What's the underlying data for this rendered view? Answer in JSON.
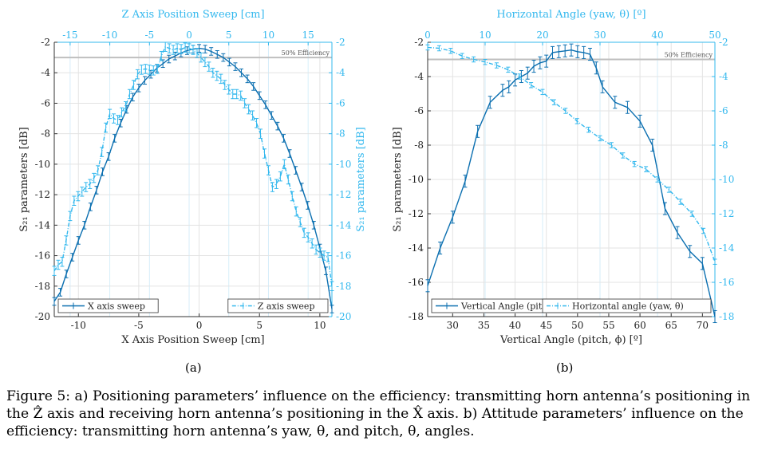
{
  "figure": {
    "label_a": "(a)",
    "label_b": "(b)",
    "caption": "Figure 5: a) Positioning parameters’ influence on the efficiency: transmitting horn antenna’s positioning in the Ẑ axis and receiving horn antenna’s positioning in the X̂ axis. b) Attitude parameters’ influence on the efficiency: transmitting horn antenna’s yaw, θ, and pitch, θ, angles."
  },
  "colors": {
    "dark": "#0b6fb0",
    "light": "#33b8ee",
    "efficiency_line": "#bfbfbf",
    "grid": "#e3e3e3"
  },
  "chart_data": [
    {
      "type": "line",
      "title": "",
      "bottom_xlabel": "X Axis Position Sweep [cm]",
      "top_xlabel": "Z Axis Position Sweep [cm]",
      "left_ylabel": "S₂₁ parameters [dB]",
      "right_ylabel": "S₂₁ parameters [dB]",
      "bottom_xlim": [
        -12,
        11
      ],
      "bottom_xticks": [
        -10,
        -5,
        0,
        5,
        10
      ],
      "top_xlim": [
        -17,
        18
      ],
      "top_xticks": [
        -15,
        -10,
        -5,
        0,
        5,
        10,
        15
      ],
      "ylim": [
        -20,
        -2
      ],
      "yticks": [
        -2,
        -4,
        -6,
        -8,
        -10,
        -12,
        -14,
        -16,
        -18,
        -20
      ],
      "grid": true,
      "reference_line": {
        "y": -3,
        "label": "50% Efficiency"
      },
      "legend": [
        "bottom-left",
        "bottom-right"
      ],
      "series": [
        {
          "name": "X axis sweep",
          "axis": "bottom-left",
          "style": "solid",
          "x": [
            -12,
            -11.5,
            -11,
            -10.5,
            -10,
            -9.5,
            -9,
            -8.5,
            -8,
            -7.5,
            -7,
            -6.5,
            -6,
            -5.5,
            -5,
            -4.5,
            -4,
            -3.5,
            -3,
            -2.5,
            -2,
            -1.5,
            -1,
            -0.5,
            0,
            0.5,
            1,
            1.5,
            2,
            2.5,
            3,
            3.5,
            4,
            4.5,
            5,
            5.5,
            6,
            6.5,
            7,
            7.5,
            8,
            8.5,
            9,
            9.5,
            10,
            10.5,
            11
          ],
          "y": [
            -19,
            -18.4,
            -17.2,
            -16.1,
            -15.0,
            -14.0,
            -12.8,
            -11.7,
            -10.5,
            -9.5,
            -8.3,
            -7.3,
            -6.4,
            -5.6,
            -5.0,
            -4.5,
            -4.1,
            -3.7,
            -3.4,
            -3.1,
            -2.9,
            -2.7,
            -2.55,
            -2.45,
            -2.4,
            -2.45,
            -2.6,
            -2.8,
            -3.0,
            -3.3,
            -3.6,
            -4.0,
            -4.4,
            -4.9,
            -5.5,
            -6.1,
            -6.8,
            -7.5,
            -8.3,
            -9.3,
            -10.4,
            -11.5,
            -12.7,
            -14.0,
            -15.5,
            -17.0,
            -19.5
          ],
          "error": 0.25
        },
        {
          "name": "Z axis sweep",
          "axis": "top-right",
          "style": "dashdot",
          "x": [
            -17,
            -16.5,
            -16,
            -15.5,
            -15,
            -14.5,
            -14,
            -13.5,
            -13,
            -12.5,
            -12,
            -11.5,
            -11,
            -10.5,
            -10,
            -9.5,
            -9,
            -8.5,
            -8,
            -7.5,
            -7,
            -6.5,
            -6,
            -5.5,
            -5,
            -4.5,
            -4,
            -3.5,
            -3,
            -2.5,
            -2,
            -1.5,
            -1,
            -0.5,
            0,
            0.5,
            1,
            1.5,
            2,
            2.5,
            3,
            3.5,
            4,
            4.5,
            5,
            5.5,
            6,
            6.5,
            7,
            7.5,
            8,
            8.5,
            9,
            9.5,
            10,
            10.5,
            11,
            11.5,
            12,
            12.5,
            13,
            13.5,
            14,
            14.5,
            15,
            15.5,
            16,
            16.5,
            17,
            17.5,
            18
          ],
          "y": [
            -17.0,
            -16.6,
            -16.4,
            -15.0,
            -13.4,
            -12.4,
            -12.1,
            -11.8,
            -11.5,
            -11.3,
            -10.9,
            -10.4,
            -9.2,
            -7.6,
            -6.7,
            -7.0,
            -7.1,
            -6.6,
            -6.2,
            -5.4,
            -4.8,
            -4.1,
            -3.8,
            -3.75,
            -3.8,
            -3.85,
            -3.75,
            -2.9,
            -2.3,
            -2.4,
            -2.5,
            -2.4,
            -2.45,
            -2.35,
            -2.4,
            -2.5,
            -2.7,
            -3.0,
            -3.3,
            -3.6,
            -4.0,
            -4.2,
            -4.4,
            -4.8,
            -5.1,
            -5.4,
            -5.4,
            -5.5,
            -6.0,
            -6.4,
            -6.8,
            -7.3,
            -8.0,
            -9.3,
            -10.4,
            -11.5,
            -11.3,
            -10.8,
            -10.0,
            -11.0,
            -12.1,
            -13.1,
            -13.8,
            -14.5,
            -14.8,
            -15.2,
            -15.6,
            -15.8,
            -16.0,
            -16.1,
            -18.0
          ],
          "error": 0.3
        }
      ]
    },
    {
      "type": "line",
      "title": "",
      "bottom_xlabel": "Vertical Angle (pitch, ϕ) [º]",
      "top_xlabel": "Horizontal Angle (yaw, θ) [º]",
      "left_ylabel": "S₂₁ parameters [dB]",
      "right_ylabel": "",
      "bottom_xlim": [
        26,
        72
      ],
      "bottom_xticks": [
        30,
        35,
        40,
        45,
        50,
        55,
        60,
        65,
        70
      ],
      "top_xlim": [
        0,
        50
      ],
      "top_xticks": [
        0,
        10,
        20,
        30,
        40,
        50
      ],
      "ylim": [
        -18,
        -2
      ],
      "yticks": [
        -2,
        -4,
        -6,
        -8,
        -10,
        -12,
        -14,
        -16,
        -18
      ],
      "grid": true,
      "reference_line": {
        "y": -3,
        "label": "50% Efficiency"
      },
      "legend": [
        "bottom-left",
        "bottom-right"
      ],
      "series": [
        {
          "name": "Vertical Angle (pitch, ϕ)",
          "axis": "bottom-left",
          "style": "solid",
          "x": [
            26,
            28,
            30,
            32,
            34,
            36,
            38,
            39,
            40,
            41,
            42,
            43,
            44,
            45,
            46,
            47,
            48,
            49,
            50,
            51,
            52,
            53,
            54,
            56,
            58,
            60,
            62,
            64,
            66,
            68,
            70,
            72
          ],
          "y": [
            -16.2,
            -14.0,
            -12.2,
            -10.1,
            -7.2,
            -5.5,
            -4.8,
            -4.6,
            -4.2,
            -4.0,
            -3.8,
            -3.4,
            -3.2,
            -3.1,
            -2.6,
            -2.55,
            -2.5,
            -2.45,
            -2.55,
            -2.6,
            -2.7,
            -3.5,
            -4.6,
            -5.5,
            -5.8,
            -6.6,
            -8.0,
            -11.7,
            -13.1,
            -14.2,
            -14.9,
            -18.0
          ],
          "error": 0.35
        },
        {
          "name": "Horizontal angle (yaw, θ)",
          "axis": "top-right",
          "style": "dashdot",
          "x": [
            0,
            2,
            4,
            6,
            8,
            10,
            12,
            14,
            16,
            18,
            20,
            22,
            24,
            26,
            28,
            30,
            32,
            34,
            36,
            38,
            40,
            42,
            44,
            46,
            48,
            50
          ],
          "y": [
            -2.3,
            -2.35,
            -2.5,
            -2.8,
            -3.0,
            -3.15,
            -3.35,
            -3.6,
            -4.0,
            -4.5,
            -4.9,
            -5.5,
            -6.0,
            -6.6,
            -7.1,
            -7.6,
            -8.0,
            -8.6,
            -9.1,
            -9.4,
            -10.0,
            -10.6,
            -11.3,
            -12.0,
            -13.0,
            -14.8
          ],
          "error": 0.15
        }
      ]
    }
  ]
}
